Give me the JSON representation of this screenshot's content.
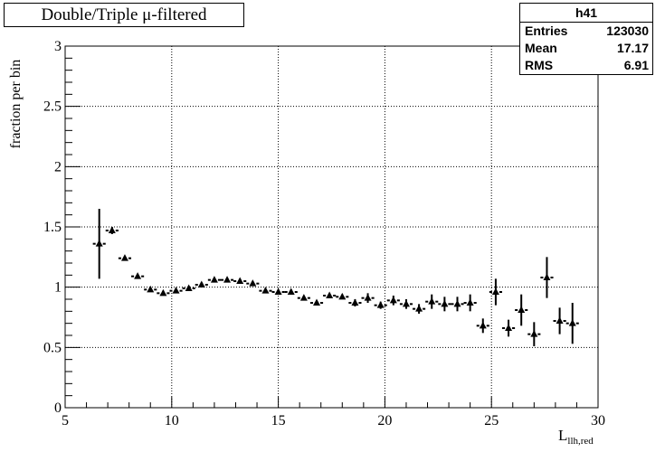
{
  "title": "Double/Triple μ-filtered",
  "stats": {
    "name": "h41",
    "rows": [
      {
        "label": "Entries",
        "value": "123030"
      },
      {
        "label": "Mean",
        "value": "17.17"
      },
      {
        "label": "RMS",
        "value": "6.91"
      }
    ]
  },
  "chart_data": {
    "type": "scatter",
    "title": "Double/Triple μ-filtered",
    "xlabel": "L",
    "xlabel_sub": "llh,red",
    "ylabel": "fraction per bin",
    "xlim": [
      5,
      30
    ],
    "ylim": [
      0,
      3
    ],
    "x_ticks": [
      "5",
      "10",
      "15",
      "20",
      "25",
      "30"
    ],
    "y_ticks": [
      "0",
      "0.5",
      "1",
      "1.5",
      "2",
      "2.5",
      "3"
    ],
    "grid": true,
    "marker": "triangle",
    "bin_half_width": 0.3,
    "points": [
      {
        "x": 6.6,
        "y": 1.36,
        "err": 0.29
      },
      {
        "x": 7.2,
        "y": 1.47,
        "err": 0.03
      },
      {
        "x": 7.8,
        "y": 1.24,
        "err": 0.02
      },
      {
        "x": 8.4,
        "y": 1.09,
        "err": 0.02
      },
      {
        "x": 9.0,
        "y": 0.98,
        "err": 0.02
      },
      {
        "x": 9.6,
        "y": 0.95,
        "err": 0.02
      },
      {
        "x": 10.2,
        "y": 0.97,
        "err": 0.02
      },
      {
        "x": 10.8,
        "y": 0.99,
        "err": 0.02
      },
      {
        "x": 11.4,
        "y": 1.02,
        "err": 0.02
      },
      {
        "x": 12.0,
        "y": 1.06,
        "err": 0.02
      },
      {
        "x": 12.6,
        "y": 1.06,
        "err": 0.02
      },
      {
        "x": 13.2,
        "y": 1.05,
        "err": 0.02
      },
      {
        "x": 13.8,
        "y": 1.03,
        "err": 0.02
      },
      {
        "x": 14.4,
        "y": 0.97,
        "err": 0.02
      },
      {
        "x": 15.0,
        "y": 0.96,
        "err": 0.02
      },
      {
        "x": 15.6,
        "y": 0.96,
        "err": 0.02
      },
      {
        "x": 16.2,
        "y": 0.91,
        "err": 0.02
      },
      {
        "x": 16.8,
        "y": 0.87,
        "err": 0.02
      },
      {
        "x": 17.4,
        "y": 0.93,
        "err": 0.02
      },
      {
        "x": 18.0,
        "y": 0.92,
        "err": 0.02
      },
      {
        "x": 18.6,
        "y": 0.87,
        "err": 0.03
      },
      {
        "x": 19.2,
        "y": 0.91,
        "err": 0.04
      },
      {
        "x": 19.8,
        "y": 0.85,
        "err": 0.03
      },
      {
        "x": 20.4,
        "y": 0.89,
        "err": 0.04
      },
      {
        "x": 21.0,
        "y": 0.86,
        "err": 0.04
      },
      {
        "x": 21.6,
        "y": 0.82,
        "err": 0.04
      },
      {
        "x": 22.2,
        "y": 0.88,
        "err": 0.06
      },
      {
        "x": 22.8,
        "y": 0.86,
        "err": 0.06
      },
      {
        "x": 23.4,
        "y": 0.86,
        "err": 0.06
      },
      {
        "x": 24.0,
        "y": 0.87,
        "err": 0.07
      },
      {
        "x": 24.6,
        "y": 0.68,
        "err": 0.06
      },
      {
        "x": 25.2,
        "y": 0.96,
        "err": 0.11
      },
      {
        "x": 25.8,
        "y": 0.66,
        "err": 0.07
      },
      {
        "x": 26.4,
        "y": 0.81,
        "err": 0.13
      },
      {
        "x": 27.0,
        "y": 0.61,
        "err": 0.1
      },
      {
        "x": 27.6,
        "y": 1.08,
        "err": 0.17
      },
      {
        "x": 28.2,
        "y": 0.72,
        "err": 0.11
      },
      {
        "x": 28.8,
        "y": 0.7,
        "err": 0.17
      }
    ]
  }
}
